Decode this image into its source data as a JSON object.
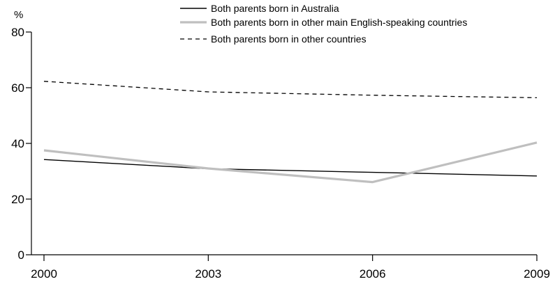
{
  "chart_data": {
    "type": "line",
    "ylabel": "%",
    "ylim": [
      0,
      80
    ],
    "yticks": [
      "0",
      "20",
      "40",
      "60",
      "80"
    ],
    "x": [
      "2000",
      "2003",
      "2006",
      "2009"
    ],
    "xticks": [
      "2000",
      "2003",
      "2006",
      "2009"
    ],
    "grid": false,
    "legend_position": "top-right",
    "series": [
      {
        "name": "Both parents born in Australia",
        "values": [
          34.2,
          30.9,
          29.6,
          28.3
        ],
        "color": "#000000",
        "style": "solid"
      },
      {
        "name": "Both parents born in other main English-speaking countries",
        "values": [
          37.5,
          31.0,
          26.1,
          40.3
        ],
        "color": "#bfbfbf",
        "style": "solid-thick"
      },
      {
        "name": "Both parents born in other countries",
        "values": [
          62.3,
          58.5,
          57.3,
          56.4
        ],
        "color": "#000000",
        "style": "dashed"
      }
    ]
  }
}
